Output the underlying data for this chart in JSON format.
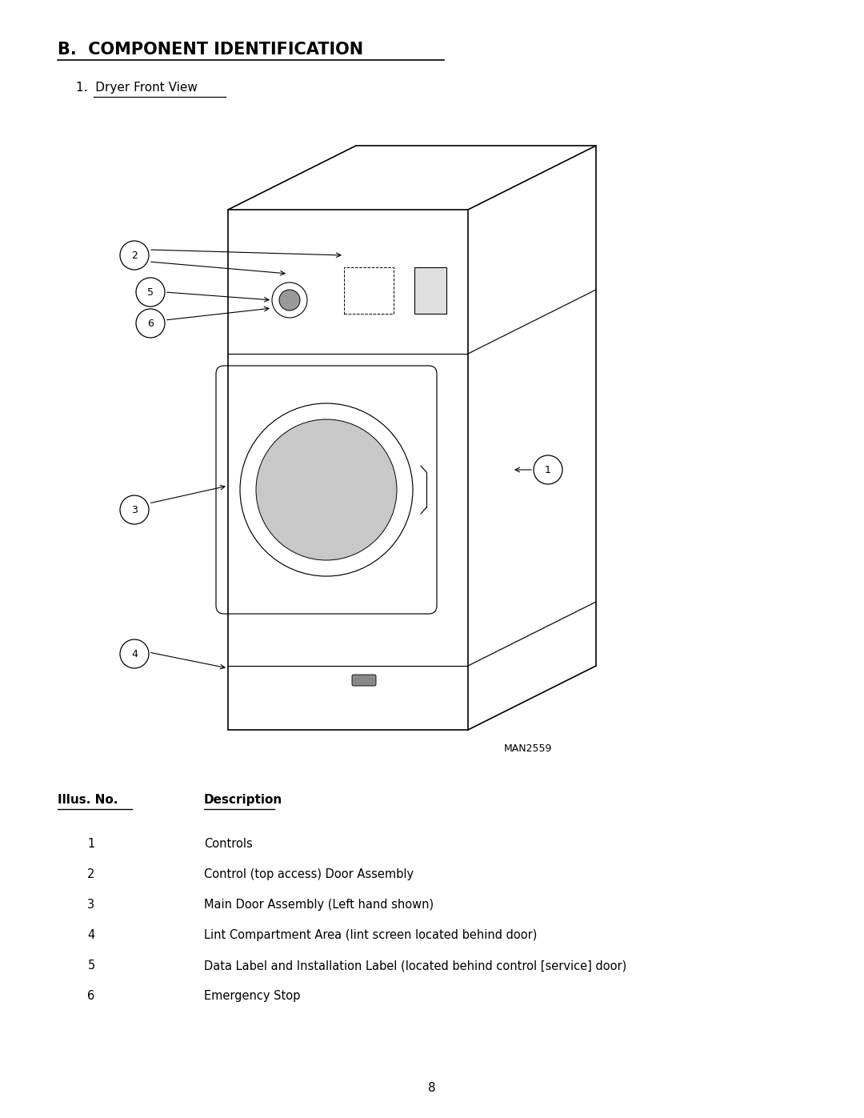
{
  "title": "B.  COMPONENT IDENTIFICATION",
  "subtitle": "1.  Dryer Front View",
  "man_label": "MAN2559",
  "page_number": "8",
  "bg_color": "#ffffff",
  "text_color": "#000000",
  "table_header_num": "Illus. No.",
  "table_header_desc": "Description",
  "table_rows": [
    [
      "1",
      "Controls"
    ],
    [
      "2",
      "Control (top access) Door Assembly"
    ],
    [
      "3",
      "Main Door Assembly (Left hand shown)"
    ],
    [
      "4",
      "Lint Compartment Area (lint screen located behind door)"
    ],
    [
      "5",
      "Data Label and Installation Label (located behind control [service] door)"
    ],
    [
      "6",
      "Emergency Stop"
    ]
  ]
}
